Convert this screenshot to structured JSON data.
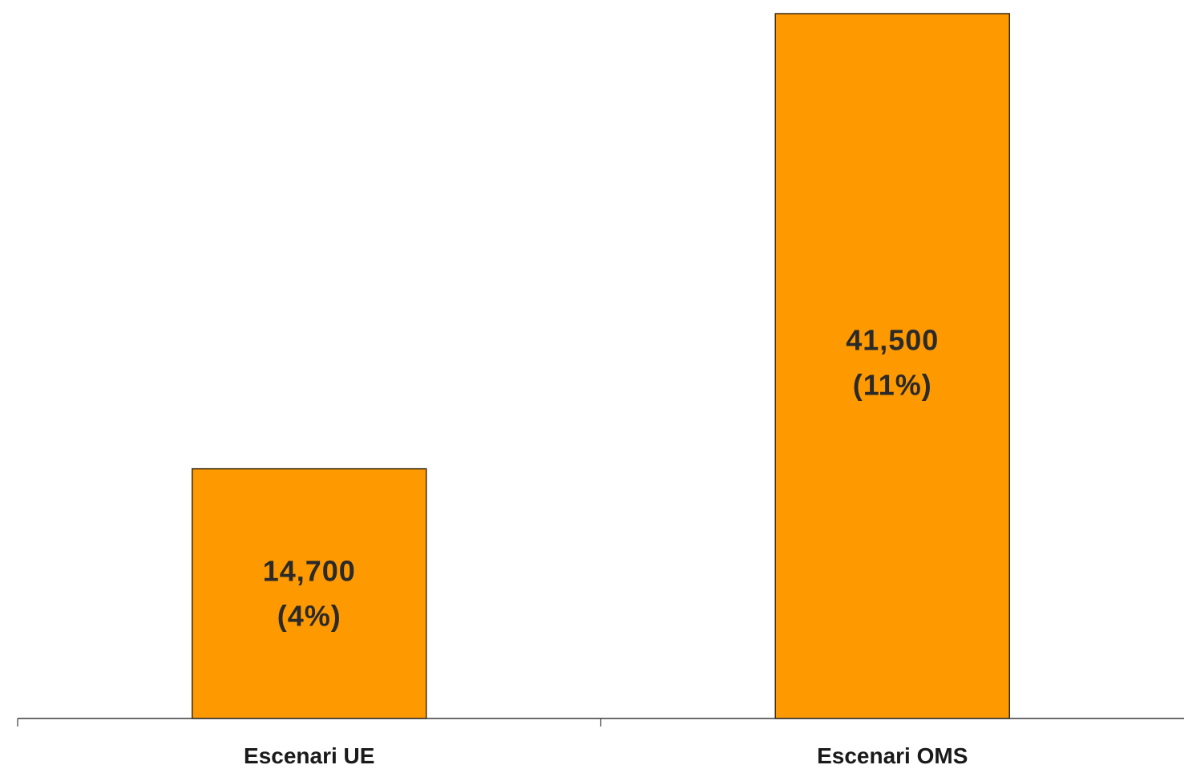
{
  "chart_data": {
    "type": "bar",
    "categories": [
      "Escenari UE",
      "Escenari OMS"
    ],
    "values": [
      14700,
      41500
    ],
    "data_labels": [
      [
        "14,700",
        "(4%)"
      ],
      [
        "41,500",
        "(11%)"
      ]
    ],
    "title": "",
    "xlabel": "",
    "ylabel": "",
    "ylim": [
      0,
      41500
    ],
    "grid": false,
    "legend": "none",
    "colors": {
      "bar": "#FF9900",
      "bar_border": "#3a2a10",
      "axis": "#3a3a3a",
      "text": "#1a1a1a"
    }
  }
}
